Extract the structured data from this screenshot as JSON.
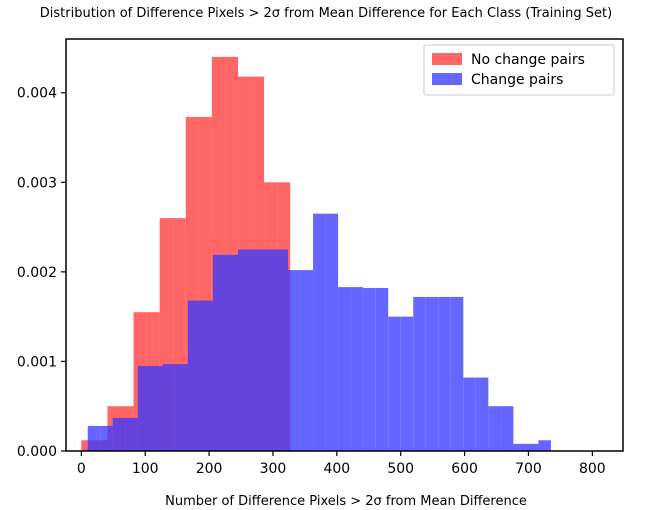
{
  "chart_data": {
    "type": "histogram",
    "title": "Distribution of Difference Pixels > 2σ from Mean Difference for Each Class (Training Set)",
    "xlabel": "Number of Difference Pixels > 2σ from Mean Difference",
    "ylabel": "",
    "xlim": [
      -24,
      848
    ],
    "ylim": [
      0,
      0.0046
    ],
    "xticks": [
      0,
      100,
      200,
      300,
      400,
      500,
      600,
      700,
      800
    ],
    "yticks": [
      0.0,
      0.001,
      0.002,
      0.003,
      0.004
    ],
    "ytick_labels": [
      "0.000",
      "0.001",
      "0.002",
      "0.003",
      "0.004"
    ],
    "grid": false,
    "legend_position": "upper-right",
    "series": [
      {
        "name": "No change pairs",
        "color": "#ff3b3b",
        "opacity": 0.78,
        "bins": [
          [
            0,
            20.4
          ],
          [
            20.4,
            40.9
          ],
          [
            40.9,
            61.3
          ],
          [
            61.3,
            81.7
          ],
          [
            81.7,
            102.2
          ],
          [
            102.2,
            122.6
          ],
          [
            122.6,
            143.1
          ],
          [
            143.1,
            163.5
          ],
          [
            163.5,
            183.9
          ],
          [
            183.9,
            204.4
          ],
          [
            204.4,
            224.8
          ],
          [
            224.8,
            245.3
          ],
          [
            245.3,
            265.7
          ],
          [
            265.7,
            286.1
          ],
          [
            286.1,
            306.6
          ],
          [
            306.6,
            327.0
          ],
          [
            327.0,
            347.5
          ],
          [
            347.5,
            367.9
          ]
        ],
        "values": [
          0.00012,
          0.00012,
          0.0005,
          0.0005,
          0.00155,
          0.00155,
          0.0026,
          0.0026,
          0.00373,
          0.00373,
          0.0044,
          0.0044,
          0.00418,
          0.00418,
          0.003,
          0.003,
          0.0,
          0.0
        ]
      },
      {
        "name": "Change pairs",
        "color": "#3a3aff",
        "opacity": 0.78,
        "bins": [
          [
            10,
            29.6
          ],
          [
            29.6,
            49.2
          ],
          [
            49.2,
            68.8
          ],
          [
            68.8,
            88.4
          ],
          [
            88.4,
            108.0
          ],
          [
            108.0,
            127.6
          ],
          [
            127.6,
            147.2
          ],
          [
            147.2,
            166.8
          ],
          [
            166.8,
            186.4
          ],
          [
            186.4,
            206.0
          ],
          [
            206.0,
            225.6
          ],
          [
            225.6,
            245.2
          ],
          [
            245.2,
            264.8
          ],
          [
            264.8,
            284.4
          ],
          [
            284.4,
            304.0
          ],
          [
            304.0,
            323.6
          ],
          [
            323.6,
            343.2
          ],
          [
            343.2,
            362.8
          ],
          [
            362.8,
            382.4
          ],
          [
            382.4,
            402.0
          ],
          [
            402.0,
            421.6
          ],
          [
            421.6,
            441.2
          ],
          [
            441.2,
            460.8
          ],
          [
            460.8,
            480.4
          ],
          [
            480.4,
            500.0
          ],
          [
            500.0,
            519.6
          ],
          [
            519.6,
            539.2
          ],
          [
            539.2,
            558.8
          ],
          [
            558.8,
            578.4
          ],
          [
            578.4,
            598.0
          ],
          [
            598.0,
            617.6
          ],
          [
            617.6,
            637.2
          ],
          [
            637.2,
            656.8
          ],
          [
            656.8,
            676.4
          ],
          [
            676.4,
            696.0
          ],
          [
            696.0,
            715.6
          ],
          [
            715.6,
            735.2
          ]
        ],
        "values": [
          0.00028,
          0.00028,
          0.00037,
          0.00037,
          0.00095,
          0.00095,
          0.00097,
          0.00097,
          0.00168,
          0.00168,
          0.00219,
          0.00219,
          0.00225,
          0.00225,
          0.00225,
          0.00225,
          0.00202,
          0.00202,
          0.00265,
          0.00265,
          0.00183,
          0.00183,
          0.00182,
          0.00182,
          0.0015,
          0.0015,
          0.00172,
          0.00172,
          0.00172,
          0.00172,
          0.00082,
          0.00082,
          0.0005,
          0.0005,
          8e-05,
          8e-05,
          0.00012
        ]
      }
    ]
  }
}
